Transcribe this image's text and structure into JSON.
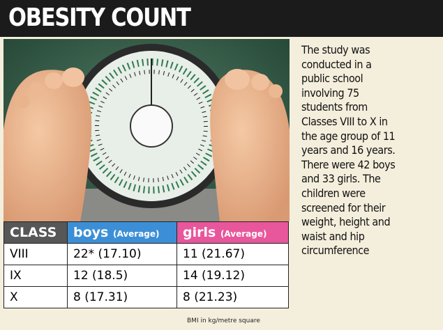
{
  "header": {
    "title": "OBESITY COUNT"
  },
  "sidebar": {
    "lines": [
      "The study was",
      "conducted in a",
      "public school",
      "involving 75",
      "students from",
      "Classes VIII to X in",
      "the age group of 11",
      "years and 16 years.",
      "There were 42 boys",
      "and 33 girls. The",
      "children were",
      "screened for their",
      "weight, height and",
      "waist and hip",
      "circumference"
    ]
  },
  "table": {
    "header": [
      {
        "label": "CLASS"
      },
      {
        "label": "boys",
        "note": "(Average)"
      },
      {
        "label": "girls",
        "note": "(Average)"
      }
    ],
    "rows": [
      [
        "VIII",
        "22* (17.10)",
        "11 (21.67)"
      ],
      [
        "IX",
        "12 (18.5)",
        "14 (19.12)"
      ],
      [
        "X",
        "8 (17.31)",
        "8 (21.23)"
      ]
    ]
  },
  "footnote": "BMI in kg/metre square"
}
